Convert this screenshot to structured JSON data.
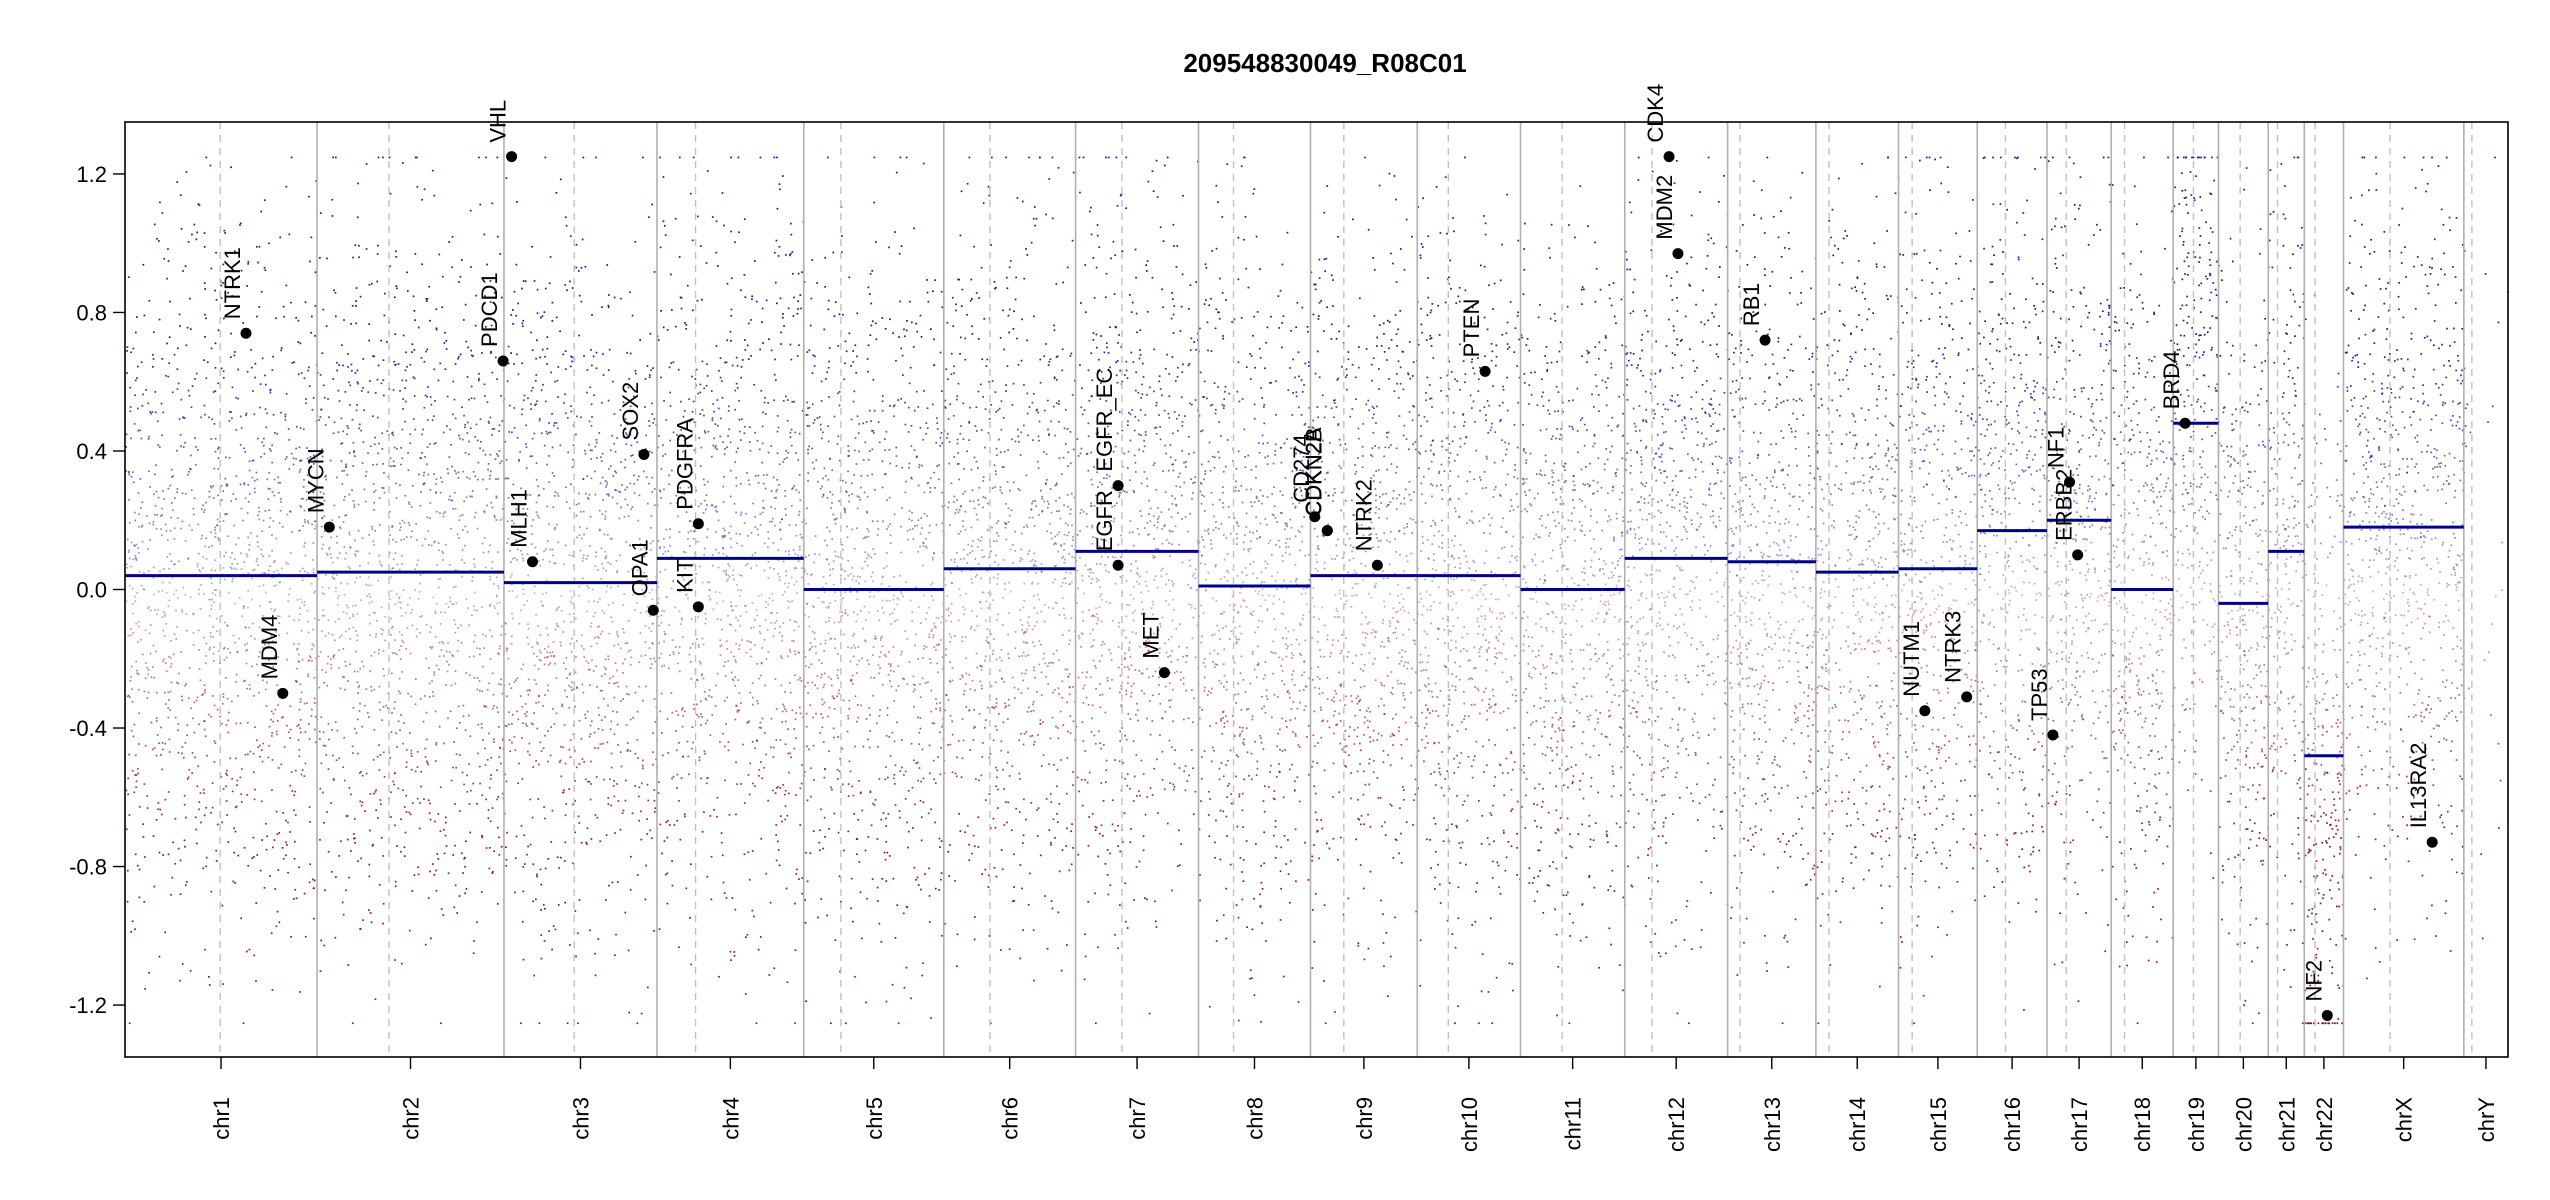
{
  "chart_data": {
    "type": "scatter",
    "title": "209548830049_R08C01",
    "xlabel": "",
    "ylabel": "",
    "ylim": [
      -1.35,
      1.35
    ],
    "y_ticks": [
      -1.2,
      -0.8,
      -0.4,
      0.0,
      0.4,
      0.8,
      1.2
    ],
    "y_tick_labels": [
      "-1.2",
      "-0.8",
      "-0.4",
      "0.0",
      "0.4",
      "0.8",
      "1.2"
    ],
    "grid": false,
    "colors": {
      "gain": "#1a1a8c",
      "loss": "#8b1a1a",
      "segment": "#00008b",
      "boundary": "#b0b0b0",
      "centromere": "#c0c0c0",
      "gene_point": "#000000"
    },
    "chromosomes": [
      {
        "name": "chr1",
        "start": 0.0,
        "end": 248.9,
        "centromere": 123.4,
        "segment": 0.04
      },
      {
        "name": "chr2",
        "start": 248.9,
        "end": 491.1,
        "centromere": 342.1,
        "segment": 0.05
      },
      {
        "name": "chr3",
        "start": 491.1,
        "end": 689.4,
        "centromere": 582.1,
        "segment": 0.02
      },
      {
        "name": "chr4",
        "start": 689.4,
        "end": 879.6,
        "centromere": 739.4,
        "segment": 0.09
      },
      {
        "name": "chr5",
        "start": 879.6,
        "end": 1061.1,
        "centromere": 927.7,
        "segment": 0.0
      },
      {
        "name": "chr6",
        "start": 1061.1,
        "end": 1231.9,
        "centromere": 1120.9,
        "segment": 0.06
      },
      {
        "name": "chr7",
        "start": 1231.9,
        "end": 1391.2,
        "centromere": 1292.0,
        "segment": 0.11
      },
      {
        "name": "chr8",
        "start": 1391.2,
        "end": 1536.3,
        "centromere": 1436.6,
        "segment": 0.01
      },
      {
        "name": "chr9",
        "start": 1536.3,
        "end": 1674.7,
        "centromere": 1579.5,
        "segment": 0.04
      },
      {
        "name": "chr10",
        "start": 1674.7,
        "end": 1808.5,
        "centromere": 1714.9,
        "segment": 0.04
      },
      {
        "name": "chr11",
        "start": 1808.5,
        "end": 1943.6,
        "centromere": 1862.4,
        "segment": 0.0
      },
      {
        "name": "chr12",
        "start": 1943.6,
        "end": 2076.9,
        "centromere": 1978.9,
        "segment": 0.09
      },
      {
        "name": "chr13",
        "start": 2076.9,
        "end": 2191.3,
        "centromere": 2093.0,
        "segment": 0.08
      },
      {
        "name": "chr14",
        "start": 2191.3,
        "end": 2298.4,
        "centromere": 2208.3,
        "segment": 0.05
      },
      {
        "name": "chr15",
        "start": 2298.4,
        "end": 2400.4,
        "centromere": 2316.0,
        "segment": 0.06
      },
      {
        "name": "chr16",
        "start": 2400.4,
        "end": 2490.7,
        "centromere": 2436.9,
        "segment": 0.17
      },
      {
        "name": "chr17",
        "start": 2490.7,
        "end": 2574.0,
        "centromere": 2515.7,
        "segment": 0.2
      },
      {
        "name": "chr18",
        "start": 2574.0,
        "end": 2654.4,
        "centromere": 2591.3,
        "segment": 0.0
      },
      {
        "name": "chr19",
        "start": 2654.4,
        "end": 2713.0,
        "centromere": 2680.6,
        "segment": 0.48
      },
      {
        "name": "chr20",
        "start": 2713.0,
        "end": 2777.5,
        "centromere": 2741.1,
        "segment": -0.04
      },
      {
        "name": "chr21",
        "start": 2777.5,
        "end": 2824.2,
        "centromere": 2789.5,
        "segment": 0.11
      },
      {
        "name": "chr22",
        "start": 2824.2,
        "end": 2875.0,
        "centromere": 2838.2,
        "segment": -0.48
      },
      {
        "name": "chrX",
        "start": 2875.0,
        "end": 3031.0,
        "centromere": 2935.3,
        "segment": 0.18
      },
      {
        "name": "chrY",
        "start": 3031.0,
        "end": 3088.2,
        "centromere": 3041.4,
        "segment": null
      }
    ],
    "genes": [
      {
        "name": "NTRK1",
        "x": 156.8,
        "y": 0.74
      },
      {
        "name": "MDM4",
        "x": 204.5,
        "y": -0.3
      },
      {
        "name": "MYCN",
        "x": 264.8,
        "y": 0.18
      },
      {
        "name": "PDCD1",
        "x": 490.0,
        "y": 0.66
      },
      {
        "name": "VHL",
        "x": 501.0,
        "y": 1.25
      },
      {
        "name": "MLH1",
        "x": 528.1,
        "y": 0.08
      },
      {
        "name": "SOX2",
        "x": 672.5,
        "y": 0.39
      },
      {
        "name": "OPA1",
        "x": 684.6,
        "y": -0.06
      },
      {
        "name": "PDGFRA",
        "x": 743.0,
        "y": 0.19
      },
      {
        "name": "KIT",
        "x": 743.0,
        "y": -0.05
      },
      {
        "name": "EGFR_EC",
        "x": 1287.0,
        "y": 0.3
      },
      {
        "name": "EGFR",
        "x": 1287.0,
        "y": 0.07
      },
      {
        "name": "MET",
        "x": 1347.0,
        "y": -0.24
      },
      {
        "name": "CD274",
        "x": 1541.9,
        "y": 0.21
      },
      {
        "name": "CDKN2A",
        "x": 1558.0,
        "y": 0.17
      },
      {
        "name": "CDKN2B",
        "x": 1558.2,
        "y": 0.17
      },
      {
        "name": "NTRK2",
        "x": 1623.0,
        "y": 0.07
      },
      {
        "name": "PTEN",
        "x": 1762.6,
        "y": 0.63
      },
      {
        "name": "CDK4",
        "x": 2001.0,
        "y": 1.25
      },
      {
        "name": "MDM2",
        "x": 2012.5,
        "y": 0.97
      },
      {
        "name": "RB1",
        "x": 2125.4,
        "y": 0.72
      },
      {
        "name": "NUTM1",
        "x": 2332.5,
        "y": -0.35
      },
      {
        "name": "NTRK3",
        "x": 2386.7,
        "y": -0.31
      },
      {
        "name": "TP53",
        "x": 2498.4,
        "y": -0.42
      },
      {
        "name": "ERBB2",
        "x": 2530.5,
        "y": 0.1
      },
      {
        "name": "NF1",
        "x": 2520.0,
        "y": 0.31
      },
      {
        "name": "BRD4",
        "x": 2669.8,
        "y": 0.48
      },
      {
        "name": "NF2",
        "x": 2854.0,
        "y": -1.23
      },
      {
        "name": "IL13RA2",
        "x": 2990.0,
        "y": -0.73
      }
    ]
  }
}
